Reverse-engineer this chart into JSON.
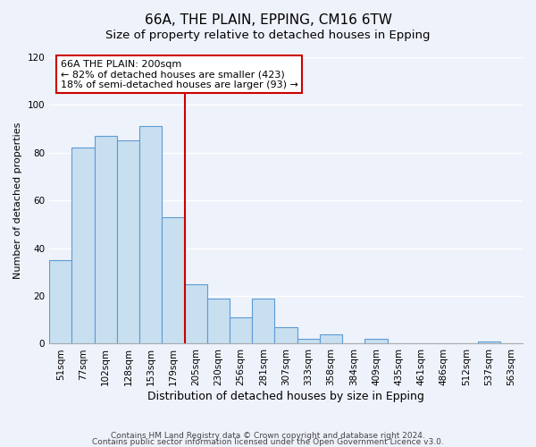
{
  "title": "66A, THE PLAIN, EPPING, CM16 6TW",
  "subtitle": "Size of property relative to detached houses in Epping",
  "xlabel": "Distribution of detached houses by size in Epping",
  "ylabel": "Number of detached properties",
  "bar_labels": [
    "51sqm",
    "77sqm",
    "102sqm",
    "128sqm",
    "153sqm",
    "179sqm",
    "205sqm",
    "230sqm",
    "256sqm",
    "281sqm",
    "307sqm",
    "333sqm",
    "358sqm",
    "384sqm",
    "409sqm",
    "435sqm",
    "461sqm",
    "486sqm",
    "512sqm",
    "537sqm",
    "563sqm"
  ],
  "bar_values": [
    35,
    82,
    87,
    85,
    91,
    53,
    25,
    19,
    11,
    19,
    7,
    2,
    4,
    0,
    2,
    0,
    0,
    0,
    0,
    1,
    0
  ],
  "bar_color": "#c8dff0",
  "bar_edge_color": "#5b9bd5",
  "vline_color": "#cc0000",
  "annotation_title": "66A THE PLAIN: 200sqm",
  "annotation_line1": "← 82% of detached houses are smaller (423)",
  "annotation_line2": "18% of semi-detached houses are larger (93) →",
  "annotation_box_facecolor": "#ffffff",
  "annotation_box_edgecolor": "#cc0000",
  "ylim": [
    0,
    120
  ],
  "yticks": [
    0,
    20,
    40,
    60,
    80,
    100,
    120
  ],
  "footnote1": "Contains HM Land Registry data © Crown copyright and database right 2024.",
  "footnote2": "Contains public sector information licensed under the Open Government Licence v3.0.",
  "background_color": "#eef2fb",
  "grid_color": "#ffffff",
  "title_fontsize": 11,
  "subtitle_fontsize": 9.5,
  "xlabel_fontsize": 9,
  "ylabel_fontsize": 8,
  "tick_fontsize": 7.5,
  "annotation_fontsize": 8,
  "footnote_fontsize": 6.5
}
